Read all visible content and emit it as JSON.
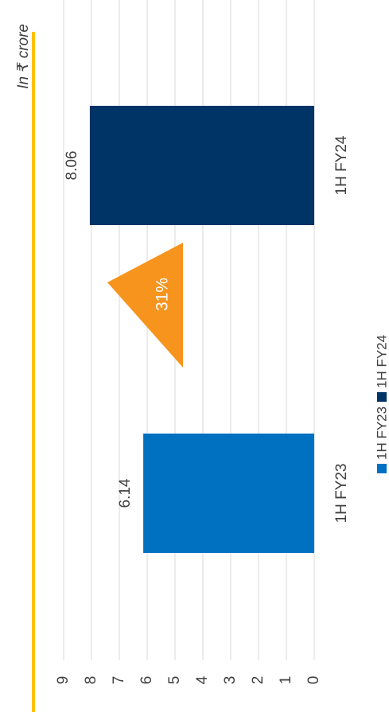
{
  "chart_data": {
    "type": "bar",
    "unit_label": "In ₹ crore",
    "categories": [
      "1H FY23",
      "1H FY24"
    ],
    "values": [
      6.14,
      8.06
    ],
    "colors": [
      "#0070c0",
      "#003366"
    ],
    "ylim": [
      0,
      9
    ],
    "yticks": [
      0,
      1,
      2,
      3,
      4,
      5,
      6,
      7,
      8,
      9
    ],
    "grid": true,
    "annotation": "31%",
    "annotation_color": "#f7941d",
    "accent_color": "#ffc000"
  }
}
